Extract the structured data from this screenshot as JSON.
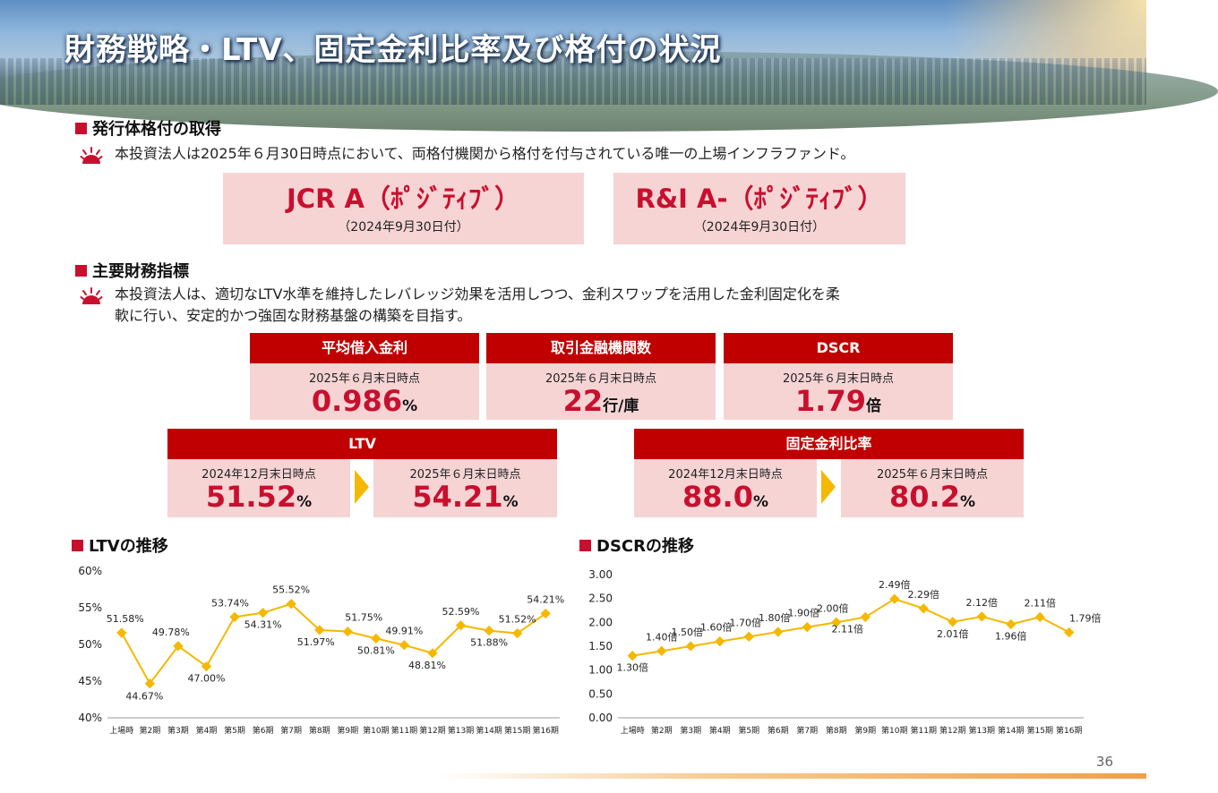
{
  "title": "財務戦略・LTV、固定金利比率及び格付の状況",
  "section1": {
    "heading": "発行体格付の取得",
    "text": "本投資法人は2025年６月30日時点において、両格付機関から格付を付与されている唯一の上場インフラファンド。",
    "ratings": [
      {
        "main": "JCR A（ﾎﾟｼﾞﾃｨﾌﾞ）",
        "date": "（2024年9月30日付）"
      },
      {
        "main": "R&I A-（ﾎﾟｼﾞﾃｨﾌﾞ）",
        "date": "（2024年9月30日付）"
      }
    ]
  },
  "section2": {
    "heading": "主要財務指標",
    "text_line1": "本投資法人は、適切なLTV水準を維持したレバレッジ効果を活用しつつ、金利スワップを活用した金利固定化を柔",
    "text_line2": "軟に行い、安定的かつ強固な財務基盤の構築を目指す。",
    "metrics": [
      {
        "title": "平均借入金利",
        "label": "2025年６月末日時点",
        "value": "0.986",
        "unit": "%"
      },
      {
        "title": "取引金融機関数",
        "label": "2025年６月末日時点",
        "value": "22",
        "unit": "行/庫"
      },
      {
        "title": "DSCR",
        "label": "2025年６月末日時点",
        "value": "1.79",
        "unit": "倍"
      }
    ],
    "ltv": {
      "title": "LTV",
      "before": {
        "label": "2024年12月末日時点",
        "value": "51.52",
        "unit": "%"
      },
      "after": {
        "label": "2025年６月末日時点",
        "value": "54.21",
        "unit": "%"
      }
    },
    "fixed": {
      "title": "固定金利比率",
      "before": {
        "label": "2024年12月末日時点",
        "value": "88.0",
        "unit": "%"
      },
      "after": {
        "label": "2025年６月末日時点",
        "value": "80.2",
        "unit": "%"
      }
    }
  },
  "ltv_chart_heading": "LTVの推移",
  "dscr_chart_heading": "DSCRの推移",
  "page_number": "36",
  "colors": {
    "accent": "#c8102e",
    "header_red": "#c00000",
    "card_pink": "#f6d4d4",
    "line": "#f5b800"
  },
  "chart_data": [
    {
      "type": "line",
      "title": "LTVの推移",
      "categories": [
        "上場時",
        "第2期",
        "第3期",
        "第4期",
        "第5期",
        "第6期",
        "第7期",
        "第8期",
        "第9期",
        "第10期",
        "第11期",
        "第12期",
        "第13期",
        "第14期",
        "第15期",
        "第16期"
      ],
      "series": [
        {
          "values": [
            51.58,
            44.67,
            49.78,
            47.0,
            53.74,
            54.31,
            55.52,
            51.97,
            51.75,
            50.81,
            49.91,
            48.81,
            52.59,
            51.88,
            51.52,
            54.21
          ]
        }
      ],
      "data_labels": [
        "51.58%",
        "44.67%",
        "49.78%",
        "47.00%",
        "53.74%",
        "54.31%",
        "55.52%",
        "51.97%",
        "51.75%",
        "50.81%",
        "49.91%",
        "48.81%",
        "52.59%",
        "51.88%",
        "51.52%",
        "54.21%"
      ],
      "yticks": [
        "40%",
        "45%",
        "50%",
        "55%",
        "60%"
      ],
      "ylim": [
        40,
        60
      ],
      "grid": false
    },
    {
      "type": "line",
      "title": "DSCRの推移",
      "categories": [
        "上場時",
        "第2期",
        "第3期",
        "第4期",
        "第5期",
        "第6期",
        "第7期",
        "第8期",
        "第9期",
        "第10期",
        "第11期",
        "第12期",
        "第13期",
        "第14期",
        "第15期",
        "第16期"
      ],
      "series": [
        {
          "values": [
            1.3,
            1.4,
            1.5,
            1.6,
            1.7,
            1.8,
            1.9,
            2.0,
            2.11,
            2.49,
            2.29,
            2.01,
            2.12,
            1.96,
            2.11,
            1.79
          ]
        }
      ],
      "data_labels": [
        "1.30倍",
        "1.40倍",
        "1.50倍",
        "1.60倍",
        "1.70倍",
        "1.80倍",
        "1.90倍",
        "2.00倍",
        "2.11倍",
        "2.49倍",
        "2.29倍",
        "2.01倍",
        "2.12倍",
        "1.96倍",
        "2.11倍",
        "1.79倍"
      ],
      "yticks": [
        "0.00",
        "0.50",
        "1.00",
        "1.50",
        "2.00",
        "2.50",
        "3.00"
      ],
      "ylim": [
        0,
        3
      ],
      "grid": false
    }
  ]
}
